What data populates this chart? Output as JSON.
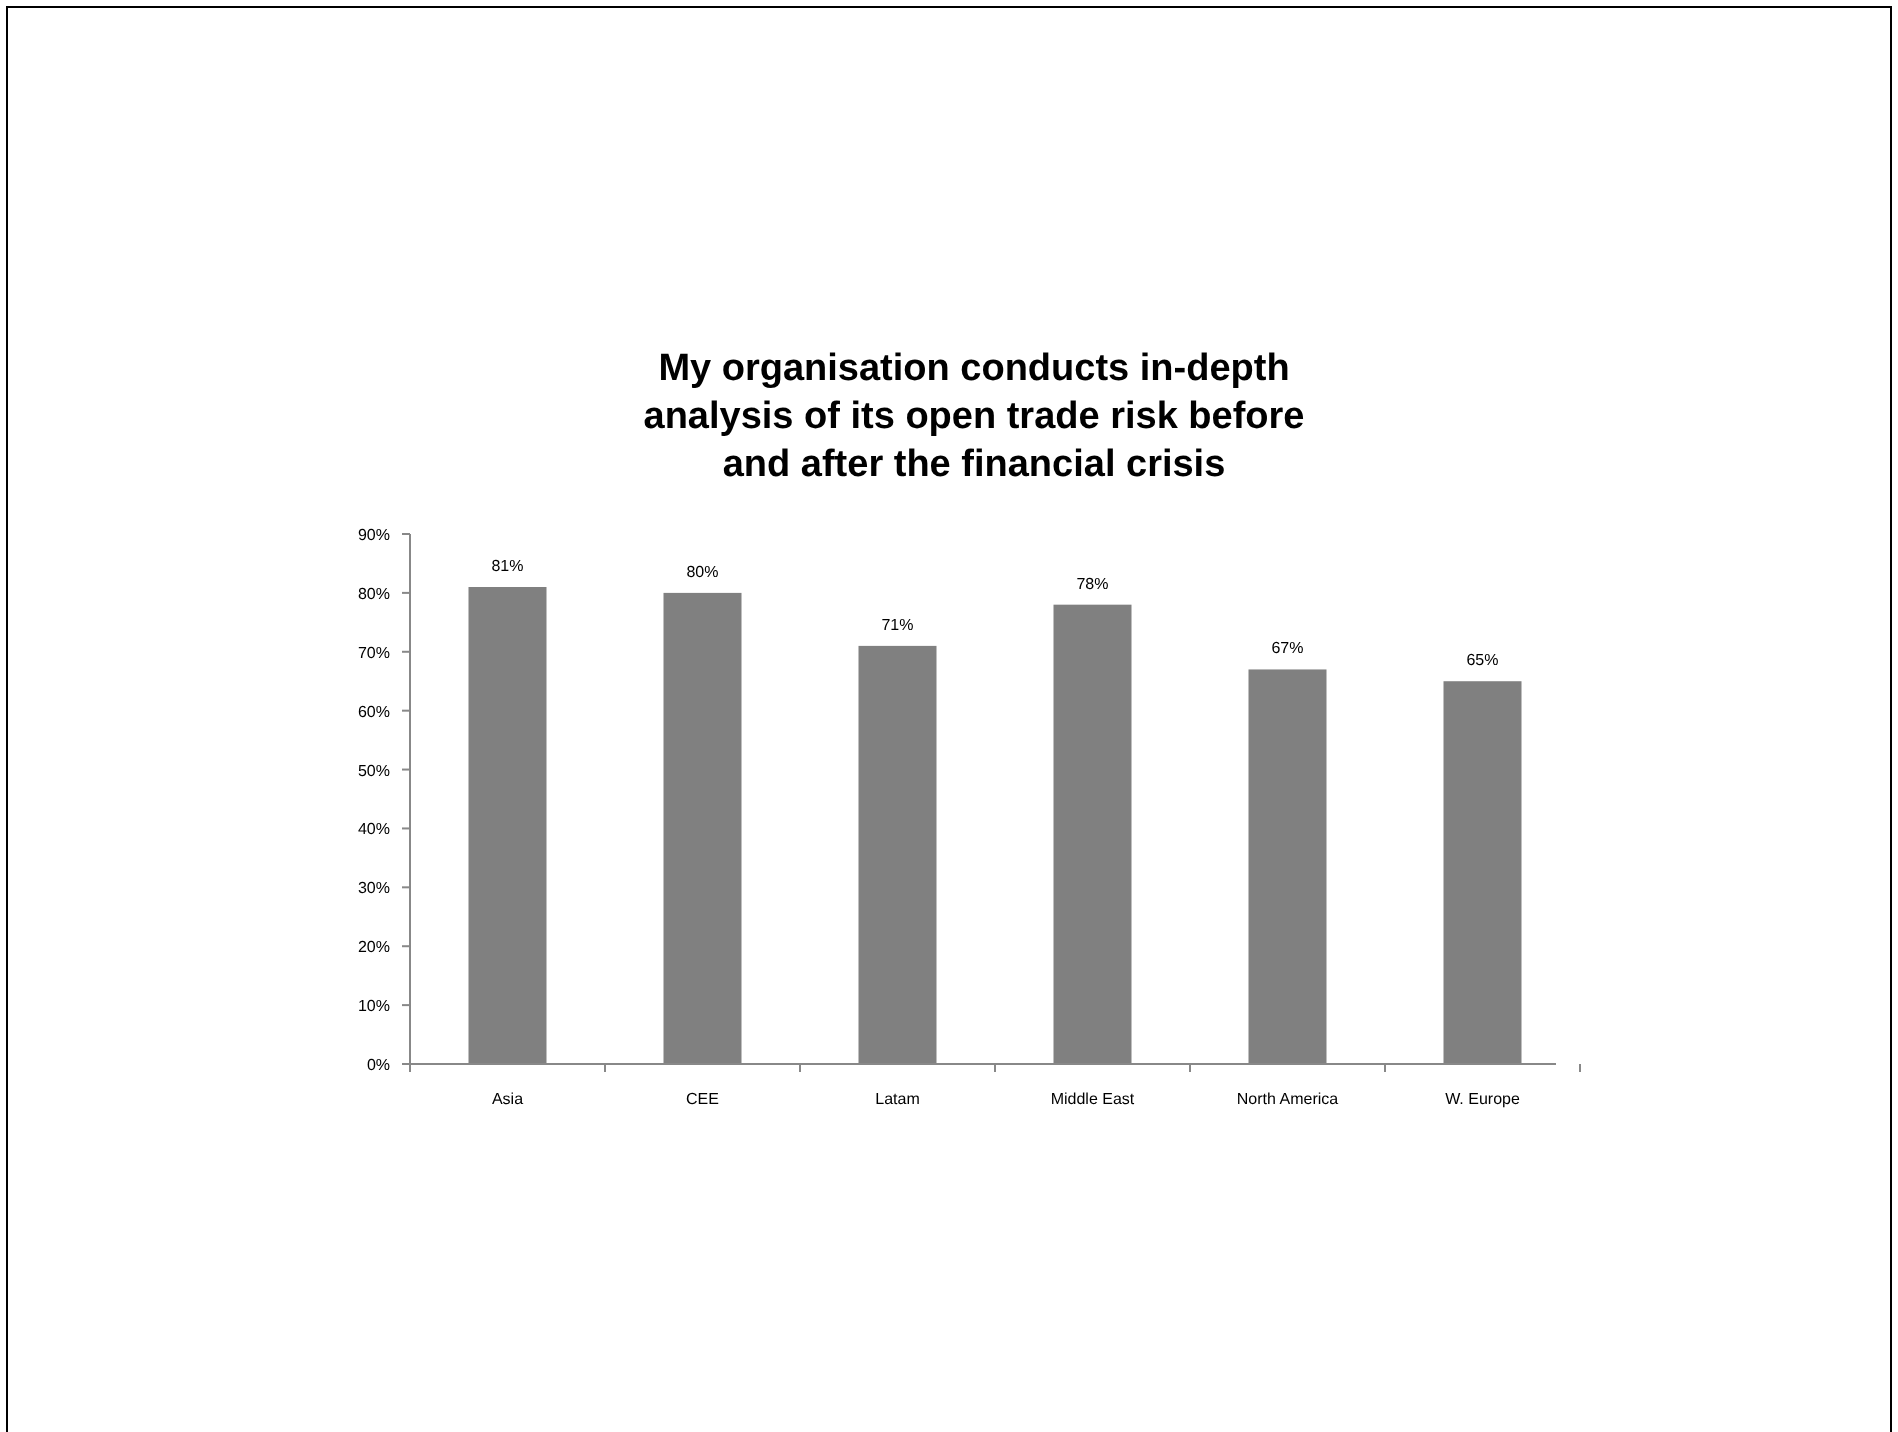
{
  "chart_data": {
    "type": "bar",
    "title": "My organisation conducts in-depth analysis of its open trade risk before and after the financial crisis",
    "categories": [
      "Asia",
      "CEE",
      "Latam",
      "Middle East",
      "North America",
      "W. Europe"
    ],
    "values": [
      81,
      80,
      71,
      78,
      67,
      65
    ],
    "color": "#808080",
    "ylim": [
      0,
      90
    ],
    "yticks": [
      {
        "value": 0,
        "label": "0%"
      },
      {
        "value": 10,
        "label": "10%"
      },
      {
        "value": 20,
        "label": "20%"
      },
      {
        "value": 30,
        "label": "30%"
      },
      {
        "value": 40,
        "label": "40%"
      },
      {
        "value": 50,
        "label": "50%"
      },
      {
        "value": 60,
        "label": "60%"
      },
      {
        "value": 70,
        "label": "70%"
      },
      {
        "value": 80,
        "label": "80%"
      },
      {
        "value": 90,
        "label": "90%"
      }
    ],
    "value_labels": [
      "81%",
      "80%",
      "71%",
      "78%",
      "67%",
      "65%"
    ],
    "grid": false
  }
}
